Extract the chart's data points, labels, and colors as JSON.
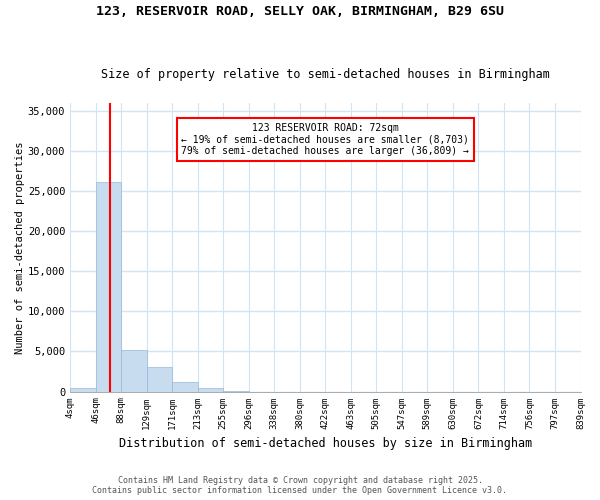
{
  "title1": "123, RESERVOIR ROAD, SELLY OAK, BIRMINGHAM, B29 6SU",
  "title2": "Size of property relative to semi-detached houses in Birmingham",
  "xlabel": "Distribution of semi-detached houses by size in Birmingham",
  "ylabel": "Number of semi-detached properties",
  "property_size_idx": 1.55,
  "annotation_text": "123 RESERVOIR ROAD: 72sqm\n← 19% of semi-detached houses are smaller (8,703)\n79% of semi-detached houses are larger (36,809) →",
  "bar_color": "#c8dcf0",
  "bar_edgecolor": "#9ab8d8",
  "line_color": "red",
  "annotation_boxcolor": "white",
  "annotation_edgecolor": "red",
  "footer1": "Contains HM Land Registry data © Crown copyright and database right 2025.",
  "footer2": "Contains public sector information licensed under the Open Government Licence v3.0.",
  "bin_labels": [
    "4sqm",
    "46sqm",
    "88sqm",
    "129sqm",
    "171sqm",
    "213sqm",
    "255sqm",
    "296sqm",
    "338sqm",
    "380sqm",
    "422sqm",
    "463sqm",
    "505sqm",
    "547sqm",
    "589sqm",
    "630sqm",
    "672sqm",
    "714sqm",
    "756sqm",
    "797sqm",
    "839sqm"
  ],
  "bar_heights": [
    400,
    26200,
    5200,
    3100,
    1200,
    400,
    100,
    0,
    0,
    0,
    0,
    0,
    0,
    0,
    0,
    0,
    0,
    0,
    0,
    0
  ],
  "ylim": [
    0,
    36000
  ],
  "yticks": [
    0,
    5000,
    10000,
    15000,
    20000,
    25000,
    30000,
    35000
  ],
  "background_color": "#ffffff",
  "grid_color": "#d0e4f4"
}
